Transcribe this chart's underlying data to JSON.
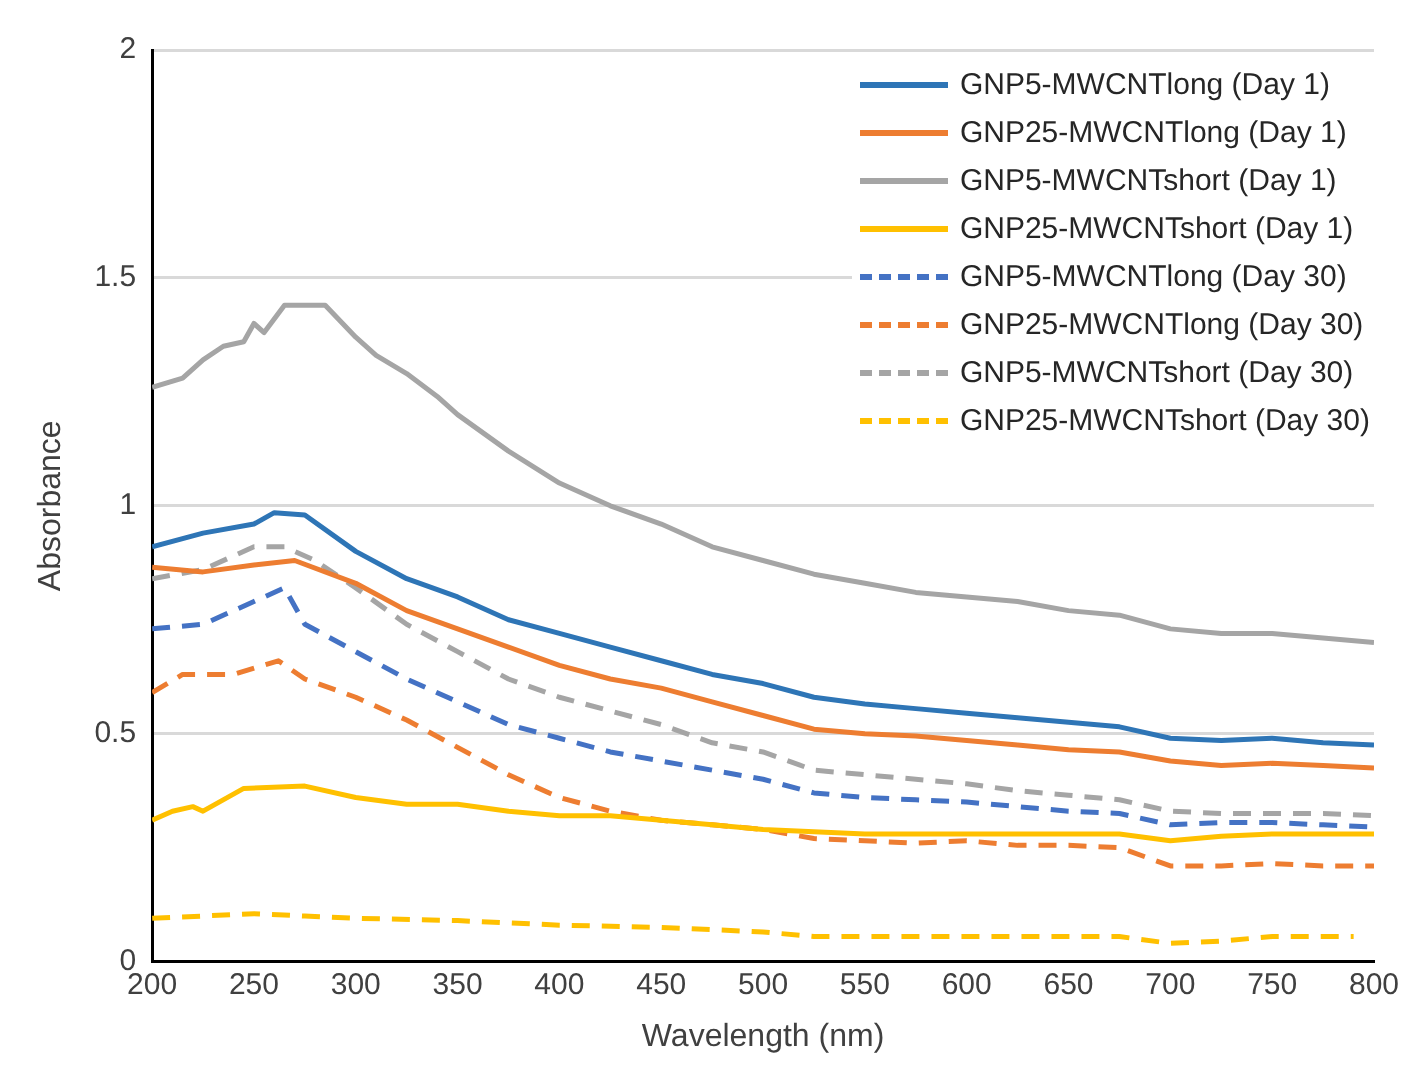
{
  "chart_data": {
    "type": "line",
    "xlabel": "Wavelength (nm)",
    "ylabel": "Absorbance",
    "xlim": [
      200,
      800
    ],
    "xticks": [
      200,
      250,
      300,
      350,
      400,
      450,
      500,
      550,
      600,
      650,
      700,
      750,
      800
    ],
    "ylim": [
      0,
      2
    ],
    "yticks": [
      0,
      0.5,
      1,
      1.5,
      2
    ],
    "grid": "y",
    "legend": "top right",
    "marker": "none",
    "series": [
      {
        "name": "GNP5-MWCNTlong (Day 1)",
        "color": "#2e75b6",
        "line_style": "solid",
        "x": [
          200,
          225,
          250,
          260,
          275,
          300,
          325,
          350,
          375,
          400,
          425,
          450,
          475,
          500,
          525,
          550,
          575,
          600,
          625,
          650,
          675,
          700,
          725,
          750,
          775,
          800
        ],
        "values": [
          0.91,
          0.94,
          0.96,
          0.985,
          0.98,
          0.9,
          0.84,
          0.8,
          0.75,
          0.72,
          0.69,
          0.66,
          0.63,
          0.61,
          0.58,
          0.565,
          0.555,
          0.545,
          0.535,
          0.525,
          0.515,
          0.49,
          0.485,
          0.49,
          0.48,
          0.475
        ]
      },
      {
        "name": "GNP25-MWCNTlong (Day 1)",
        "color": "#ed7d31",
        "line_style": "solid",
        "x": [
          200,
          225,
          250,
          270,
          300,
          325,
          350,
          375,
          400,
          425,
          450,
          475,
          500,
          525,
          550,
          575,
          600,
          625,
          650,
          675,
          700,
          725,
          750,
          775,
          800
        ],
        "values": [
          0.865,
          0.855,
          0.87,
          0.88,
          0.83,
          0.77,
          0.73,
          0.69,
          0.65,
          0.62,
          0.6,
          0.57,
          0.54,
          0.51,
          0.5,
          0.495,
          0.485,
          0.475,
          0.465,
          0.46,
          0.44,
          0.43,
          0.435,
          0.43,
          0.425
        ]
      },
      {
        "name": "GNP5-MWCNTshort (Day 1)",
        "color": "#a5a5a5",
        "line_style": "solid",
        "x": [
          200,
          215,
          225,
          235,
          245,
          250,
          255,
          265,
          275,
          285,
          300,
          310,
          325,
          340,
          350,
          375,
          400,
          425,
          450,
          475,
          500,
          525,
          550,
          575,
          600,
          625,
          650,
          675,
          700,
          725,
          750,
          775,
          800
        ],
        "values": [
          1.26,
          1.28,
          1.32,
          1.35,
          1.36,
          1.4,
          1.38,
          1.44,
          1.44,
          1.44,
          1.37,
          1.33,
          1.29,
          1.24,
          1.2,
          1.12,
          1.05,
          1.0,
          0.96,
          0.91,
          0.88,
          0.85,
          0.83,
          0.81,
          0.8,
          0.79,
          0.77,
          0.76,
          0.73,
          0.72,
          0.72,
          0.71,
          0.7
        ]
      },
      {
        "name": "GNP25-MWCNTshort (Day 1)",
        "color": "#ffc000",
        "line_style": "solid",
        "x": [
          200,
          210,
          220,
          225,
          245,
          275,
          300,
          325,
          350,
          375,
          400,
          425,
          450,
          475,
          500,
          525,
          550,
          575,
          600,
          625,
          650,
          675,
          700,
          725,
          750,
          775,
          800
        ],
        "values": [
          0.31,
          0.33,
          0.34,
          0.33,
          0.38,
          0.385,
          0.36,
          0.345,
          0.345,
          0.33,
          0.32,
          0.32,
          0.31,
          0.3,
          0.29,
          0.285,
          0.28,
          0.28,
          0.28,
          0.28,
          0.28,
          0.28,
          0.265,
          0.275,
          0.28,
          0.28,
          0.28
        ]
      },
      {
        "name": "GNP5-MWCNTlong (Day 30)",
        "color": "#4472c4",
        "line_style": "dashed",
        "x": [
          200,
          225,
          250,
          265,
          275,
          300,
          325,
          350,
          375,
          400,
          425,
          450,
          475,
          500,
          525,
          550,
          575,
          600,
          625,
          650,
          675,
          700,
          725,
          750,
          775,
          800
        ],
        "values": [
          0.73,
          0.74,
          0.79,
          0.82,
          0.74,
          0.68,
          0.62,
          0.57,
          0.52,
          0.49,
          0.46,
          0.44,
          0.42,
          0.4,
          0.37,
          0.36,
          0.355,
          0.35,
          0.34,
          0.33,
          0.325,
          0.3,
          0.305,
          0.305,
          0.3,
          0.295
        ]
      },
      {
        "name": "GNP25-MWCNTlong (Day 30)",
        "color": "#ed7d31",
        "line_style": "dashed",
        "x": [
          200,
          215,
          240,
          262,
          275,
          300,
          325,
          350,
          375,
          400,
          425,
          450,
          475,
          500,
          525,
          550,
          575,
          600,
          625,
          650,
          675,
          700,
          725,
          750,
          775,
          800
        ],
        "values": [
          0.59,
          0.63,
          0.63,
          0.66,
          0.62,
          0.58,
          0.53,
          0.47,
          0.41,
          0.36,
          0.33,
          0.31,
          0.3,
          0.29,
          0.27,
          0.265,
          0.26,
          0.265,
          0.255,
          0.255,
          0.25,
          0.21,
          0.21,
          0.215,
          0.21,
          0.21
        ]
      },
      {
        "name": "GNP5-MWCNTshort (Day 30)",
        "color": "#a5a5a5",
        "line_style": "dashed",
        "x": [
          200,
          225,
          250,
          265,
          280,
          300,
          325,
          350,
          375,
          400,
          425,
          450,
          475,
          500,
          525,
          550,
          575,
          600,
          625,
          650,
          675,
          700,
          725,
          750,
          775,
          800
        ],
        "values": [
          0.84,
          0.86,
          0.91,
          0.91,
          0.88,
          0.82,
          0.74,
          0.68,
          0.62,
          0.58,
          0.55,
          0.52,
          0.48,
          0.46,
          0.42,
          0.41,
          0.4,
          0.39,
          0.375,
          0.365,
          0.355,
          0.33,
          0.325,
          0.325,
          0.325,
          0.32
        ]
      },
      {
        "name": "GNP25-MWCNTshort (Day 30)",
        "color": "#ffc000",
        "line_style": "dashed",
        "x": [
          200,
          250,
          275,
          300,
          350,
          400,
          450,
          500,
          525,
          550,
          600,
          650,
          675,
          700,
          725,
          750,
          775,
          790
        ],
        "values": [
          0.095,
          0.105,
          0.1,
          0.095,
          0.09,
          0.08,
          0.075,
          0.065,
          0.055,
          0.055,
          0.055,
          0.055,
          0.055,
          0.04,
          0.045,
          0.055,
          0.055,
          0.055
        ]
      }
    ]
  }
}
